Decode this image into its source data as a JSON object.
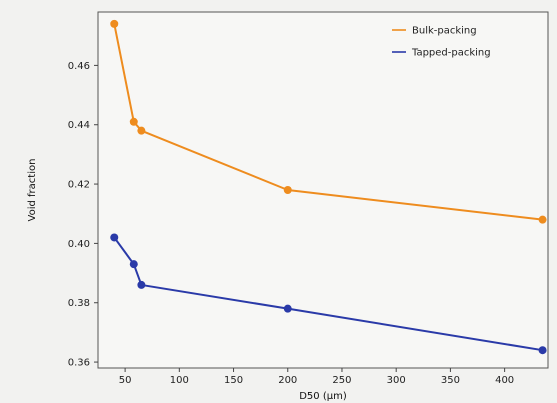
{
  "chart_data": {
    "type": "line",
    "title": "",
    "xlabel": "D50 (μm)",
    "ylabel": "Void fraction",
    "xlim": [
      25,
      440
    ],
    "ylim": [
      0.358,
      0.478
    ],
    "xticks": [
      50,
      100,
      150,
      200,
      250,
      300,
      350,
      400
    ],
    "yticks": [
      0.36,
      0.38,
      0.4,
      0.42,
      0.44,
      0.46
    ],
    "ytick_labels": [
      "0.36",
      "0.38",
      "0.40",
      "0.42",
      "0.44",
      "0.46"
    ],
    "grid": false,
    "legend_position": "top-right",
    "series": [
      {
        "name": "Bulk-packing",
        "color": "#ee8c1e",
        "x": [
          40,
          58,
          65,
          200,
          435
        ],
        "y": [
          0.474,
          0.441,
          0.438,
          0.418,
          0.408
        ]
      },
      {
        "name": "Tapped-packing",
        "color": "#2a3aa8",
        "x": [
          40,
          58,
          65,
          200,
          435
        ],
        "y": [
          0.402,
          0.393,
          0.386,
          0.378,
          0.364
        ]
      }
    ]
  }
}
